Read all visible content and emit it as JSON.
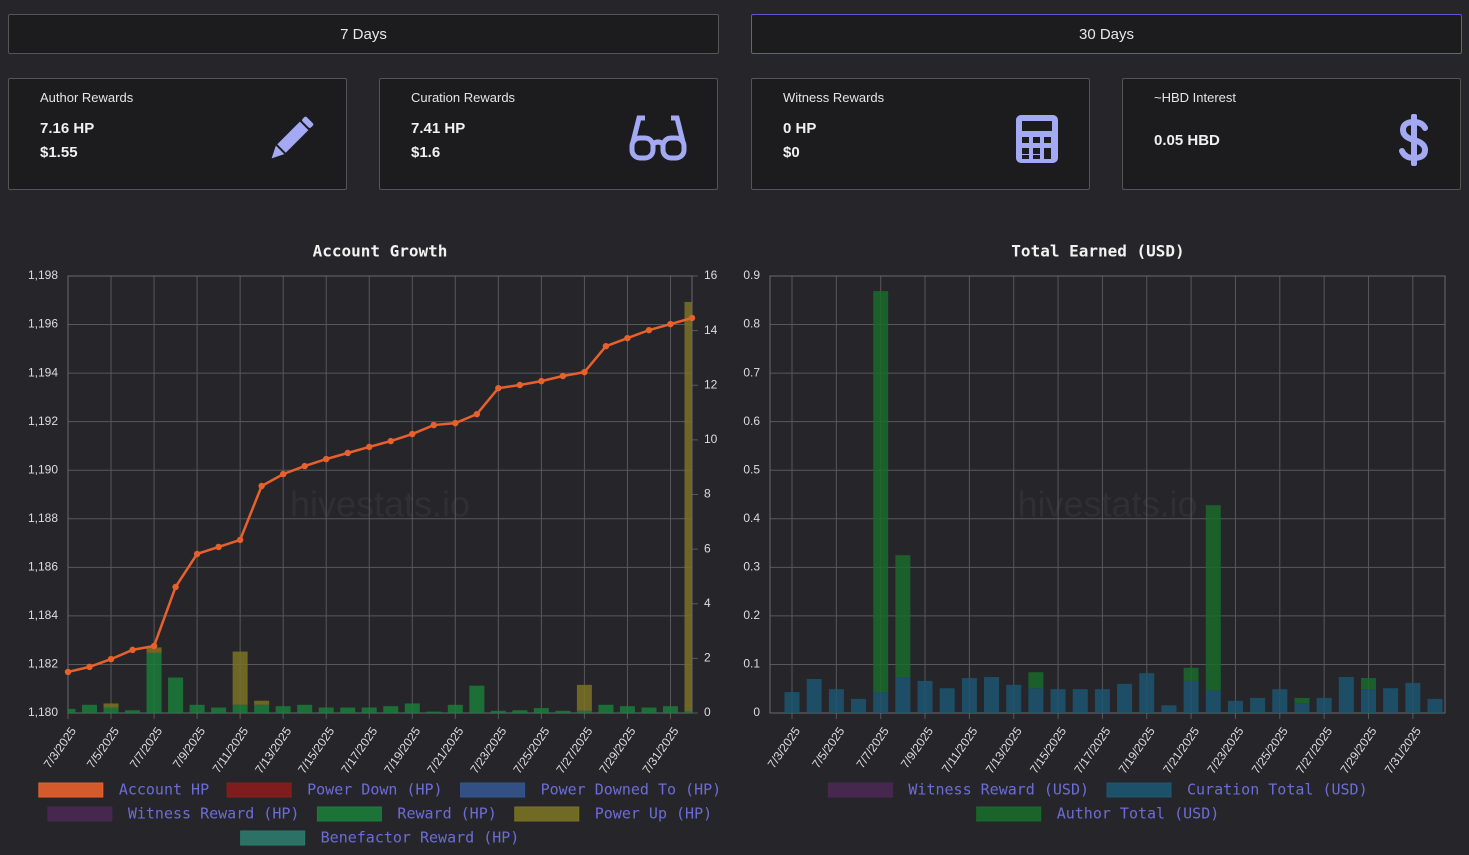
{
  "buttons": [
    "7 Days",
    "30 Days"
  ],
  "cards": [
    {
      "title": "Author Rewards",
      "lines": [
        "7.16 HP",
        "$1.55"
      ]
    },
    {
      "title": "Curation Rewards",
      "lines": [
        "7.41 HP",
        "$1.6"
      ]
    },
    {
      "title": "Witness Rewards",
      "lines": [
        "0 HP",
        "$0"
      ]
    },
    {
      "title": "~HBD Interest",
      "lines": [
        "0.05 HBD"
      ]
    }
  ],
  "chart_data": [
    {
      "type": "combo",
      "title": "Account Growth",
      "watermark": "hivestats.io",
      "stacked": true,
      "grid": true,
      "categories": [
        "7/3/2025",
        null,
        "7/5/2025",
        null,
        "7/7/2025",
        null,
        "7/9/2025",
        null,
        "7/11/2025",
        null,
        "7/13/2025",
        null,
        "7/15/2025",
        null,
        "7/17/2025",
        null,
        "7/19/2025",
        null,
        "7/21/2025",
        null,
        "7/23/2025",
        null,
        "7/25/2025",
        null,
        "7/27/2025",
        null,
        "7/29/2025",
        null,
        "7/31/2025",
        null
      ],
      "ylim": [
        1180,
        1198
      ],
      "yticks": [
        {
          "value": 1180,
          "label": "1,180"
        },
        {
          "value": 1182,
          "label": "1,182"
        },
        {
          "value": 1184,
          "label": "1,184"
        },
        {
          "value": 1186,
          "label": "1,186"
        },
        {
          "value": 1188,
          "label": "1,188"
        },
        {
          "value": 1190,
          "label": "1,190"
        },
        {
          "value": 1192,
          "label": "1,192"
        },
        {
          "value": 1194,
          "label": "1,194"
        },
        {
          "value": 1196,
          "label": "1,196"
        },
        {
          "value": 1198,
          "label": "1,198"
        }
      ],
      "y2lim": [
        0,
        16
      ],
      "y2ticks": [
        0,
        2,
        4,
        6,
        8,
        10,
        12,
        14,
        16
      ],
      "series": [
        {
          "name": "Account HP",
          "type": "line",
          "axis": "y",
          "color": "#e8612c",
          "values": [
            1181.69,
            1181.9,
            1182.22,
            1182.6,
            1182.76,
            1185.19,
            1186.55,
            1186.84,
            1187.13,
            1189.35,
            1189.84,
            1190.17,
            1190.46,
            1190.71,
            1190.96,
            1191.2,
            1191.49,
            1191.86,
            1191.94,
            1192.31,
            1193.38,
            1193.51,
            1193.67,
            1193.88,
            1194.04,
            1195.11,
            1195.44,
            1195.77,
            1196.02,
            1196.27
          ]
        },
        {
          "name": "Power Down (HP)",
          "type": "bar",
          "axis": "y2",
          "color": "#8a1c1c",
          "values": [
            0,
            0,
            0,
            0,
            0,
            0,
            0,
            0,
            0,
            0,
            0,
            0,
            0,
            0,
            0,
            0,
            0,
            0,
            0,
            0,
            0,
            0,
            0,
            0,
            0,
            0,
            0,
            0,
            0,
            0
          ]
        },
        {
          "name": "Power Downed To (HP)",
          "type": "bar",
          "axis": "y2",
          "color": "#35558f",
          "values": [
            0,
            0,
            0,
            0,
            0,
            0,
            0,
            0,
            0,
            0,
            0,
            0,
            0,
            0,
            0,
            0,
            0,
            0,
            0,
            0,
            0,
            0,
            0,
            0,
            0,
            0,
            0,
            0,
            0,
            0
          ]
        },
        {
          "name": "Witness Reward (HP)",
          "type": "bar",
          "axis": "y2",
          "color": "#4a2852",
          "values": [
            0,
            0,
            0,
            0,
            0,
            0,
            0,
            0,
            0,
            0,
            0,
            0,
            0,
            0,
            0,
            0,
            0,
            0,
            0,
            0,
            0,
            0,
            0,
            0,
            0,
            0,
            0,
            0,
            0,
            0
          ]
        },
        {
          "name": "Reward (HP)",
          "type": "bar",
          "axis": "y2",
          "color": "#1b7c3a",
          "values": [
            0.15,
            0.3,
            0.2,
            0.1,
            2.2,
            1.3,
            0.3,
            0.2,
            0.3,
            0.3,
            0.25,
            0.3,
            0.2,
            0.2,
            0.2,
            0.25,
            0.35,
            0.05,
            0.3,
            1.0,
            0.08,
            0.1,
            0.18,
            0.08,
            0.08,
            0.3,
            0.25,
            0.2,
            0.25,
            0.05
          ]
        },
        {
          "name": "Power Up (HP)",
          "type": "bar",
          "axis": "y2",
          "color": "#7a7224",
          "values": [
            0,
            0,
            0.15,
            0,
            0.2,
            0,
            0,
            0,
            1.95,
            0.15,
            0,
            0,
            0,
            0,
            0,
            0,
            0,
            0,
            0,
            0,
            0,
            0,
            0,
            0,
            0.95,
            0,
            0,
            0,
            0,
            15.0
          ]
        },
        {
          "name": "Benefactor Reward (HP)",
          "type": "bar",
          "axis": "y2",
          "color": "#2c7a6c",
          "values": [
            0,
            0,
            0,
            0,
            0,
            0,
            0,
            0,
            0,
            0,
            0,
            0,
            0,
            0,
            0,
            0,
            0,
            0,
            0,
            0,
            0,
            0,
            0,
            0,
            0,
            0,
            0,
            0,
            0,
            0
          ]
        }
      ]
    },
    {
      "type": "bar",
      "title": "Total Earned (USD)",
      "watermark": "hivestats.io",
      "stacked": true,
      "grid": true,
      "categories": [
        "7/3/2025",
        null,
        "7/5/2025",
        null,
        "7/7/2025",
        null,
        "7/9/2025",
        null,
        "7/11/2025",
        null,
        "7/13/2025",
        null,
        "7/15/2025",
        null,
        "7/17/2025",
        null,
        "7/19/2025",
        null,
        "7/21/2025",
        null,
        "7/23/2025",
        null,
        "7/25/2025",
        null,
        "7/27/2025",
        null,
        "7/29/2025",
        null,
        "7/31/2025",
        null
      ],
      "ylim": [
        0,
        0.9
      ],
      "yticks": [
        0,
        0.1,
        0.2,
        0.3,
        0.4,
        0.5,
        0.6,
        0.7,
        0.8,
        0.9
      ],
      "series": [
        {
          "name": "Witness Reward (USD)",
          "color": "#4a2852",
          "values": [
            0,
            0,
            0,
            0,
            0,
            0,
            0,
            0,
            0,
            0,
            0,
            0,
            0,
            0,
            0,
            0,
            0,
            0,
            0,
            0,
            0,
            0,
            0,
            0,
            0,
            0,
            0,
            0,
            0,
            0
          ]
        },
        {
          "name": "Curation Total (USD)",
          "color": "#1d5670",
          "values": [
            0.043,
            0.07,
            0.049,
            0.029,
            0.043,
            0.074,
            0.066,
            0.051,
            0.072,
            0.074,
            0.058,
            0.051,
            0.049,
            0.049,
            0.049,
            0.06,
            0.082,
            0.016,
            0.066,
            0.047,
            0.025,
            0.031,
            0.049,
            0.019,
            0.031,
            0.074,
            0.049,
            0.051,
            0.062,
            0.029
          ]
        },
        {
          "name": "Author Total (USD)",
          "color": "#1a6a2a",
          "values": [
            0,
            0,
            0,
            0,
            0.826,
            0.251,
            0,
            0,
            0,
            0,
            0,
            0.033,
            0,
            0,
            0,
            0,
            0,
            0,
            0.027,
            0.381,
            0,
            0,
            0,
            0.012,
            0,
            0,
            0.023,
            0,
            0,
            0
          ]
        }
      ]
    }
  ]
}
